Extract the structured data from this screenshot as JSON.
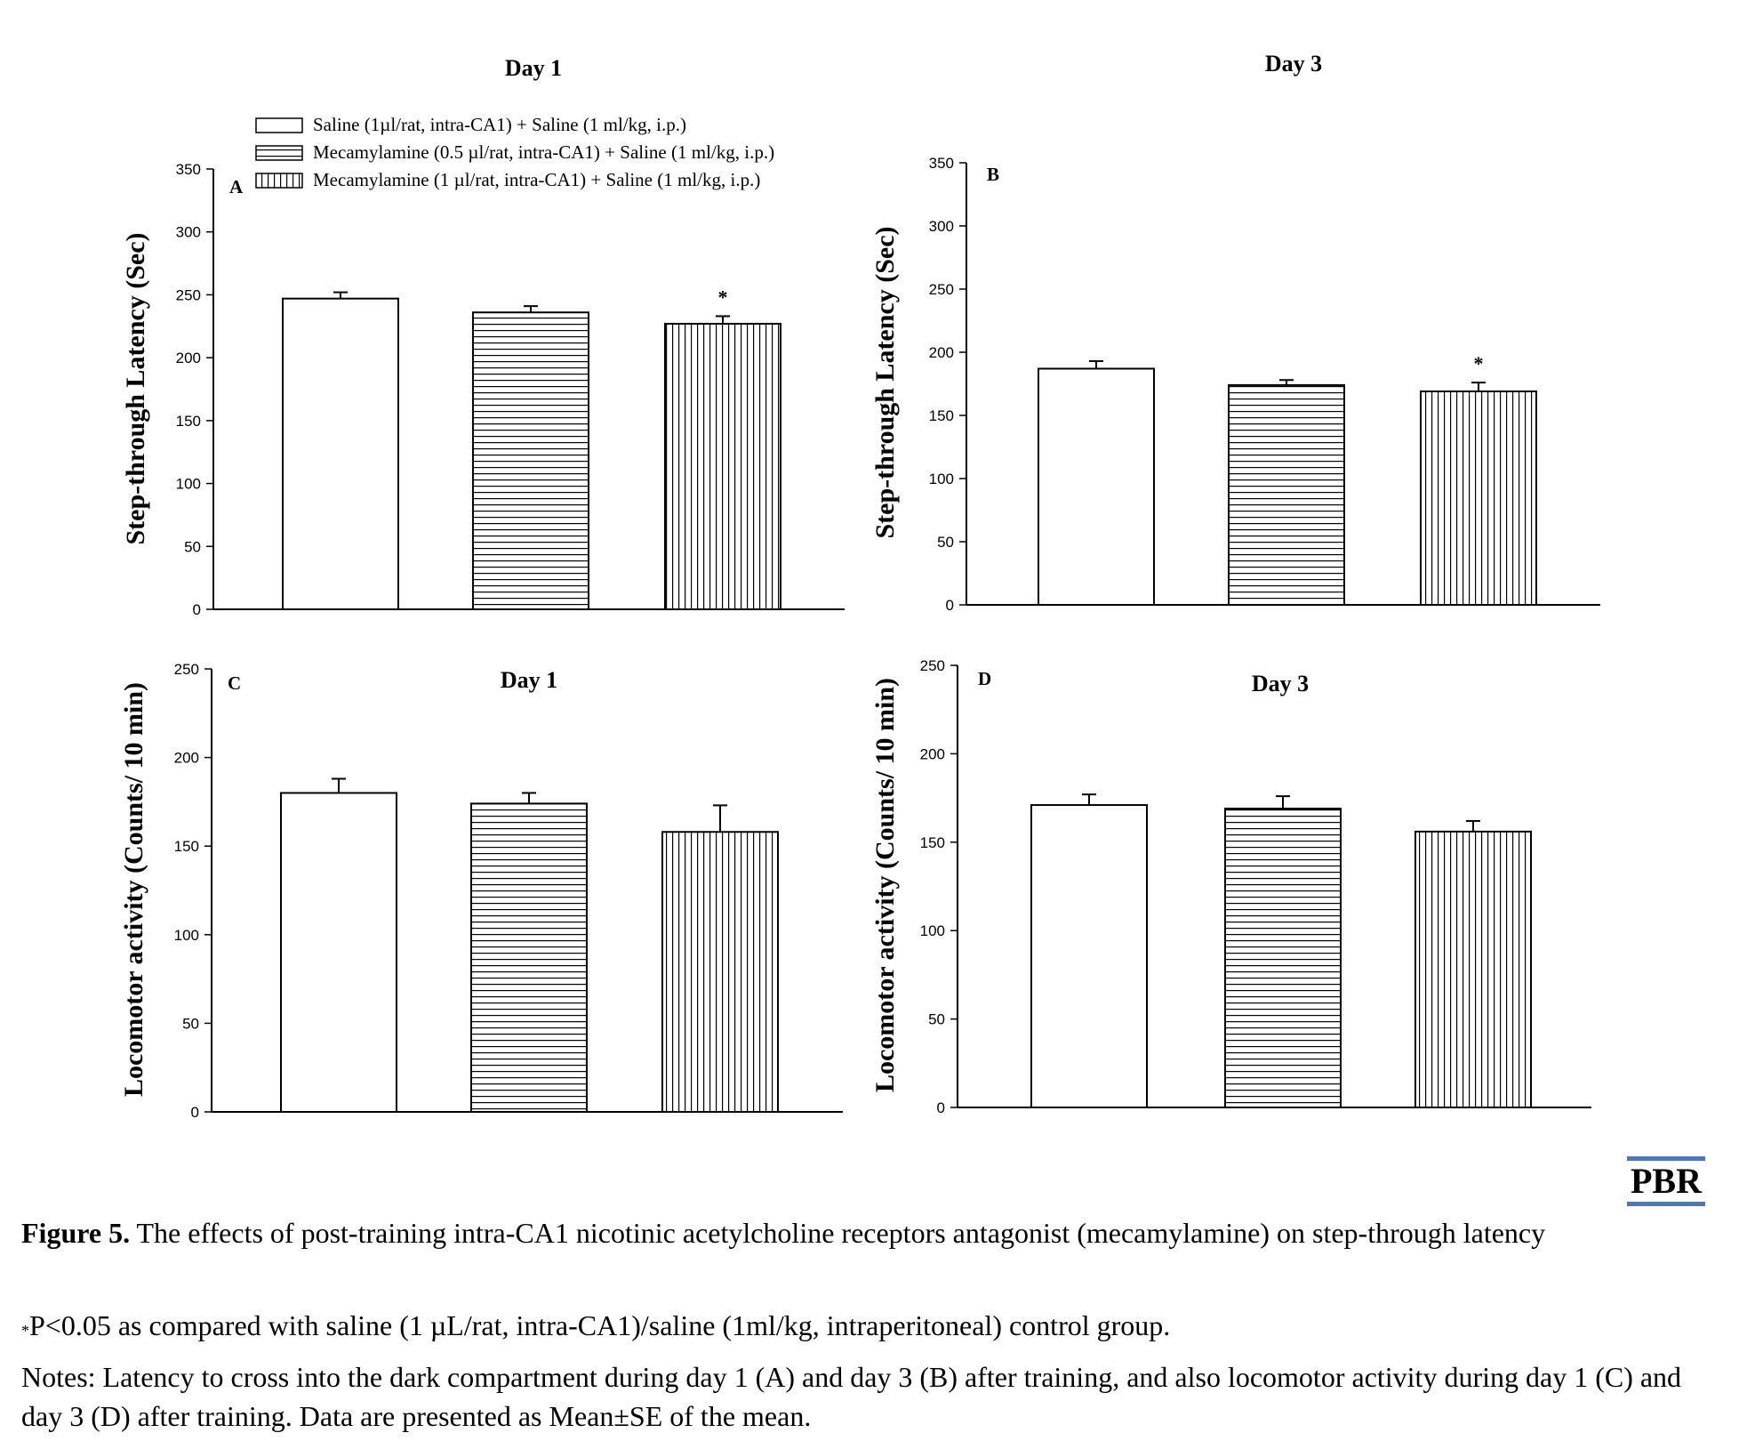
{
  "logo_text": "PBR",
  "caption": {
    "figure_label": "Figure 5.",
    "figure_text": "The effects of post-training intra-CA1 nicotinic acetylcholine receptors antagonist (mecamylamine) on step-through latency",
    "significance_mark": "*",
    "significance_text": "P<0.05 as compared with saline (1 µL/rat, intra-CA1)/saline (1ml/kg, intraperitoneal) control group.",
    "notes": "Notes: Latency to cross into the dark compartment during day 1 (A) and day 3 (B) after training, and also locomotor activity during day 1 (C) and day 3 (D) after training. Data are presented as Mean±SE of the mean."
  },
  "legend": [
    {
      "label": "Saline (1µl/rat, intra-CA1) + Saline (1 ml/kg, i.p.)",
      "pattern": "none"
    },
    {
      "label": "Mecamylamine (0.5 µl/rat, intra-CA1) + Saline (1 ml/kg, i.p.)",
      "pattern": "horizontal"
    },
    {
      "label": "Mecamylamine (1 µl/rat, intra-CA1) + Saline (1 ml/kg, i.p.)",
      "pattern": "vertical"
    }
  ],
  "colors": {
    "bar_outline": "#000000",
    "bar_fill": "#ffffff",
    "logo_rule": "#4a78b8"
  },
  "chart_data": [
    {
      "panel": "A",
      "type": "bar",
      "title": "Day 1",
      "ylabel": "Step-through Latency (Sec)",
      "xlabel": "",
      "ylim": [
        0,
        350
      ],
      "yticks": [
        0,
        50,
        100,
        150,
        200,
        250,
        300,
        350
      ],
      "values": [
        247,
        236,
        227
      ],
      "errors": [
        5,
        5,
        6
      ],
      "annotations": [
        "",
        "",
        "*"
      ]
    },
    {
      "panel": "B",
      "type": "bar",
      "title": "Day 3",
      "ylabel": "Step-through Latency (Sec)",
      "xlabel": "",
      "ylim": [
        0,
        350
      ],
      "yticks": [
        0,
        50,
        100,
        150,
        200,
        250,
        300,
        350
      ],
      "values": [
        187,
        174,
        169
      ],
      "errors": [
        6,
        4,
        7
      ],
      "annotations": [
        "",
        "",
        "*"
      ]
    },
    {
      "panel": "C",
      "type": "bar",
      "title": "Day 1",
      "ylabel": "Locomotor activity (Counts/ 10 min)",
      "xlabel": "",
      "ylim": [
        0,
        250
      ],
      "yticks": [
        0,
        50,
        100,
        150,
        200,
        250
      ],
      "values": [
        180,
        174,
        158
      ],
      "errors": [
        8,
        6,
        15
      ],
      "annotations": [
        "",
        "",
        ""
      ]
    },
    {
      "panel": "D",
      "type": "bar",
      "title": "Day 3",
      "ylabel": "Locomotor activity (Counts/ 10 min)",
      "xlabel": "",
      "ylim": [
        0,
        250
      ],
      "yticks": [
        0,
        50,
        100,
        150,
        200,
        250
      ],
      "values": [
        171,
        169,
        156
      ],
      "errors": [
        6,
        7,
        6
      ],
      "annotations": [
        "",
        "",
        ""
      ]
    }
  ]
}
